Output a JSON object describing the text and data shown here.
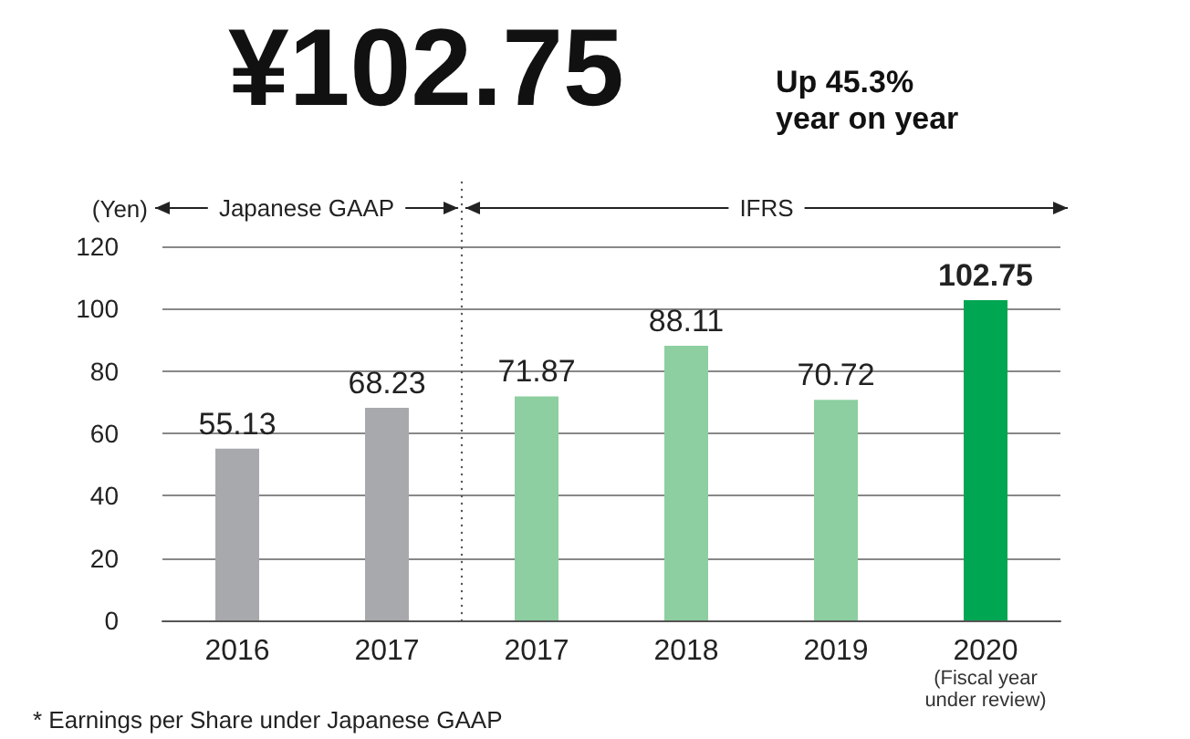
{
  "chart_data": {
    "type": "bar",
    "title": "¥102.75",
    "subtitle": "Up 45.3%\nyear on year",
    "ylabel": "(Yen)",
    "categories": [
      "2016",
      "2017",
      "2017",
      "2018",
      "2019",
      "2020\n(Fiscal year\nunder review)"
    ],
    "values": [
      55.13,
      68.23,
      71.87,
      88.11,
      70.72,
      102.75
    ],
    "colors": [
      "#a7a9ac",
      "#a7a9ac",
      "#8dcfa0",
      "#8dcfa0",
      "#8dcfa0",
      "#00a651"
    ],
    "ylim": [
      0,
      120
    ],
    "yticks": [
      0,
      20,
      40,
      60,
      80,
      100,
      120
    ],
    "grid": "y",
    "data_labels": true,
    "annotations": [
      "Japanese GAAP",
      "IFRS",
      "* Earnings per Share under Japanese GAAP"
    ]
  }
}
